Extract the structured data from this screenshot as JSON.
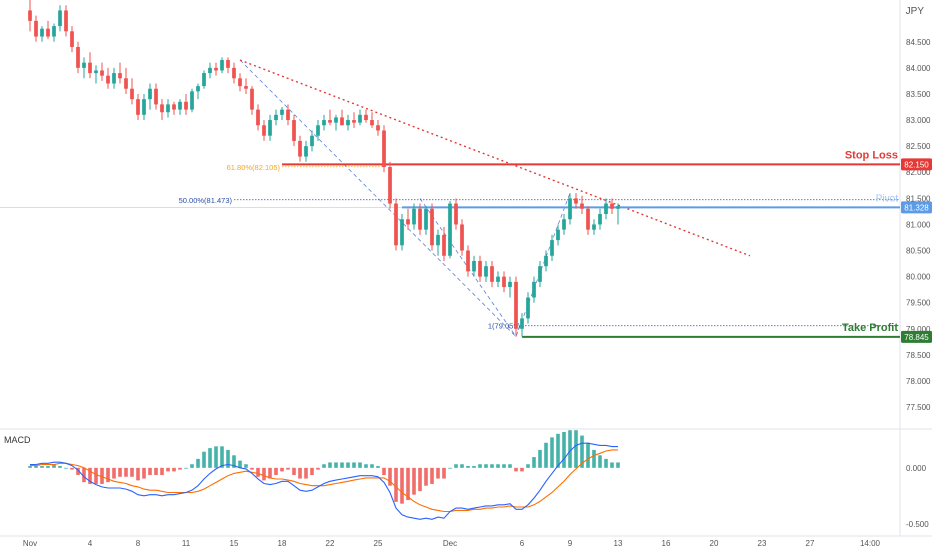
{
  "chart_data": [
    {
      "type": "candlestick",
      "symbol": "JPY",
      "y_ticks": [
        "84.500",
        "84.000",
        "83.500",
        "83.000",
        "82.500",
        "82.000",
        "81.500",
        "81.000",
        "80.500",
        "80.000",
        "79.500",
        "79.000",
        "78.500",
        "78.000",
        "77.500"
      ],
      "ylim": [
        77.1,
        85.3
      ],
      "x_tick_labels": [
        "Nov",
        "4",
        "8",
        "11",
        "15",
        "18",
        "22",
        "25",
        "Dec",
        "6",
        "9",
        "13",
        "16",
        "20",
        "23",
        "27",
        "14:00"
      ],
      "x_tick_index": [
        0,
        10,
        18,
        26,
        34,
        42,
        50,
        58,
        70,
        82,
        90,
        98,
        106,
        114,
        122,
        130,
        140
      ],
      "xlim": [
        -5,
        145
      ],
      "candles": [
        [
          0,
          85.1,
          85.3,
          84.7,
          84.9
        ],
        [
          1,
          84.9,
          85.0,
          84.5,
          84.6
        ],
        [
          2,
          84.6,
          84.8,
          84.5,
          84.75
        ],
        [
          3,
          84.75,
          84.9,
          84.55,
          84.6
        ],
        [
          4,
          84.6,
          84.85,
          84.5,
          84.8
        ],
        [
          5,
          84.8,
          85.2,
          84.7,
          85.1
        ],
        [
          6,
          85.1,
          85.2,
          84.6,
          84.7
        ],
        [
          7,
          84.7,
          84.8,
          84.3,
          84.4
        ],
        [
          8,
          84.4,
          84.5,
          83.9,
          84.0
        ],
        [
          9,
          84.0,
          84.2,
          83.8,
          84.1
        ],
        [
          10,
          84.1,
          84.3,
          83.8,
          83.9
        ],
        [
          11,
          83.9,
          84.05,
          83.7,
          83.95
        ],
        [
          12,
          83.95,
          84.1,
          83.75,
          83.85
        ],
        [
          13,
          83.85,
          84.0,
          83.6,
          83.7
        ],
        [
          14,
          83.7,
          84.0,
          83.6,
          83.9
        ],
        [
          15,
          83.9,
          84.1,
          83.7,
          83.8
        ],
        [
          16,
          83.8,
          84.0,
          83.5,
          83.6
        ],
        [
          17,
          83.6,
          83.8,
          83.3,
          83.4
        ],
        [
          18,
          83.4,
          83.5,
          83.0,
          83.1
        ],
        [
          19,
          83.1,
          83.5,
          83.0,
          83.4
        ],
        [
          20,
          83.4,
          83.7,
          83.2,
          83.6
        ],
        [
          21,
          83.6,
          83.7,
          83.2,
          83.3
        ],
        [
          22,
          83.3,
          83.4,
          83.0,
          83.15
        ],
        [
          23,
          83.15,
          83.4,
          83.05,
          83.3
        ],
        [
          24,
          83.3,
          83.35,
          83.1,
          83.2
        ],
        [
          25,
          83.2,
          83.4,
          83.1,
          83.35
        ],
        [
          26,
          83.35,
          83.5,
          83.1,
          83.2
        ],
        [
          27,
          83.2,
          83.6,
          83.15,
          83.55
        ],
        [
          28,
          83.55,
          83.7,
          83.4,
          83.65
        ],
        [
          29,
          83.65,
          83.95,
          83.6,
          83.9
        ],
        [
          30,
          83.9,
          84.1,
          83.8,
          84.0
        ],
        [
          31,
          84.0,
          84.1,
          83.85,
          83.95
        ],
        [
          32,
          83.95,
          84.2,
          83.9,
          84.15
        ],
        [
          33,
          84.15,
          84.2,
          83.9,
          84.0
        ],
        [
          34,
          84.0,
          84.1,
          83.7,
          83.8
        ],
        [
          35,
          83.8,
          83.9,
          83.55,
          83.65
        ],
        [
          36,
          83.65,
          83.8,
          83.5,
          83.6
        ],
        [
          37,
          83.6,
          83.65,
          83.1,
          83.2
        ],
        [
          38,
          83.2,
          83.3,
          82.8,
          82.9
        ],
        [
          39,
          82.9,
          83.0,
          82.6,
          82.7
        ],
        [
          40,
          82.7,
          83.1,
          82.6,
          83.0
        ],
        [
          41,
          83.0,
          83.2,
          82.9,
          83.1
        ],
        [
          42,
          83.1,
          83.25,
          83.0,
          83.2
        ],
        [
          43,
          83.2,
          83.3,
          82.9,
          83.0
        ],
        [
          44,
          83.0,
          83.1,
          82.5,
          82.6
        ],
        [
          45,
          82.6,
          82.7,
          82.2,
          82.3
        ],
        [
          46,
          82.3,
          82.6,
          82.2,
          82.5
        ],
        [
          47,
          82.5,
          82.8,
          82.4,
          82.7
        ],
        [
          48,
          82.7,
          83.0,
          82.6,
          82.9
        ],
        [
          49,
          82.9,
          83.1,
          82.8,
          83.0
        ],
        [
          50,
          83.0,
          83.2,
          82.9,
          82.95
        ],
        [
          51,
          82.95,
          83.1,
          82.8,
          83.05
        ],
        [
          52,
          83.05,
          83.2,
          82.9,
          82.9
        ],
        [
          53,
          82.9,
          83.1,
          82.8,
          83.0
        ],
        [
          54,
          83.0,
          83.15,
          82.85,
          82.95
        ],
        [
          55,
          82.95,
          83.2,
          82.9,
          83.1
        ],
        [
          56,
          83.1,
          83.2,
          82.95,
          83.0
        ],
        [
          57,
          83.0,
          83.15,
          82.85,
          82.9
        ],
        [
          58,
          82.9,
          83.0,
          82.7,
          82.8
        ],
        [
          59,
          82.8,
          82.9,
          82.0,
          82.1
        ],
        [
          60,
          82.1,
          82.2,
          81.3,
          81.4
        ],
        [
          61,
          81.4,
          81.5,
          80.5,
          80.6
        ],
        [
          62,
          80.6,
          81.2,
          80.5,
          81.1
        ],
        [
          63,
          81.1,
          81.3,
          80.9,
          81.0
        ],
        [
          64,
          81.0,
          81.4,
          80.9,
          81.3
        ],
        [
          65,
          81.3,
          81.4,
          80.8,
          80.9
        ],
        [
          66,
          80.9,
          81.35,
          80.8,
          81.3
        ],
        [
          67,
          81.3,
          81.4,
          80.5,
          80.6
        ],
        [
          68,
          80.6,
          80.9,
          80.4,
          80.8
        ],
        [
          69,
          80.8,
          80.95,
          80.3,
          80.4
        ],
        [
          70,
          80.4,
          81.45,
          80.35,
          81.4
        ],
        [
          71,
          81.4,
          81.5,
          80.9,
          81.0
        ],
        [
          72,
          81.0,
          81.1,
          80.4,
          80.5
        ],
        [
          73,
          80.5,
          80.6,
          80.0,
          80.1
        ],
        [
          74,
          80.1,
          80.4,
          80.0,
          80.3
        ],
        [
          75,
          80.3,
          80.4,
          79.9,
          80.0
        ],
        [
          76,
          80.0,
          80.3,
          79.9,
          80.2
        ],
        [
          77,
          80.2,
          80.3,
          79.8,
          79.9
        ],
        [
          78,
          79.9,
          80.1,
          79.8,
          80.0
        ],
        [
          79,
          80.0,
          80.1,
          79.7,
          79.8
        ],
        [
          80,
          79.8,
          80.0,
          79.6,
          79.9
        ],
        [
          81,
          79.9,
          80.0,
          78.85,
          79.0
        ],
        [
          82,
          79.0,
          79.3,
          78.85,
          79.2
        ],
        [
          83,
          79.2,
          79.7,
          79.1,
          79.6
        ],
        [
          84,
          79.6,
          80.0,
          79.5,
          79.9
        ],
        [
          85,
          79.9,
          80.3,
          79.8,
          80.2
        ],
        [
          86,
          80.2,
          80.5,
          80.1,
          80.4
        ],
        [
          87,
          80.4,
          80.8,
          80.3,
          80.7
        ],
        [
          88,
          80.7,
          81.0,
          80.6,
          80.9
        ],
        [
          89,
          80.9,
          81.2,
          80.8,
          81.1
        ],
        [
          90,
          81.1,
          81.6,
          81.0,
          81.5
        ],
        [
          91,
          81.5,
          81.6,
          81.3,
          81.4
        ],
        [
          92,
          81.4,
          81.55,
          81.2,
          81.3
        ],
        [
          93,
          81.3,
          81.35,
          80.8,
          80.9
        ],
        [
          94,
          80.9,
          81.1,
          80.8,
          81.0
        ],
        [
          95,
          81.0,
          81.3,
          80.9,
          81.2
        ],
        [
          96,
          81.2,
          81.5,
          81.1,
          81.4
        ],
        [
          97,
          81.4,
          81.5,
          81.2,
          81.3
        ],
        [
          98,
          81.3,
          81.4,
          81.0,
          81.35
        ]
      ],
      "lines": {
        "stop_loss": {
          "label": "Stop Loss",
          "value": 82.15,
          "price_label": "82.150",
          "color": "#e53935"
        },
        "take_profit": {
          "label": "Take Profit",
          "value": 78.845,
          "price_label": "78.845",
          "color": "#2e7d32"
        },
        "pivot": {
          "label": "Pivot",
          "value": 81.328,
          "price_label": "81.328",
          "color": "#5b9be8"
        }
      },
      "fib_labels": [
        {
          "text": "61.80%(82.105)",
          "value": 82.105,
          "color": "#f5a623"
        },
        {
          "text": "50.00%(81.473)",
          "value": 81.473,
          "color": "#2a4fa8"
        },
        {
          "text": "1(79.059)",
          "value": 79.059,
          "color": "#2a4fa8"
        }
      ],
      "trendline": {
        "x": [
          35,
          120
        ],
        "y": [
          84.15,
          80.4
        ],
        "color": "#e53935"
      },
      "colors": {
        "up": "#26a69a",
        "down": "#ef5350"
      }
    },
    {
      "type": "macd",
      "title": "MACD",
      "y_ticks": [
        "0.000",
        "-0.500"
      ],
      "tick_values": [
        0,
        -0.5
      ],
      "ylim": [
        -0.6,
        0.32
      ],
      "macd": [
        0.03,
        0.03,
        0.04,
        0.04,
        0.05,
        0.05,
        0.04,
        0.02,
        -0.02,
        -0.08,
        -0.12,
        -0.15,
        -0.17,
        -0.18,
        -0.18,
        -0.18,
        -0.19,
        -0.21,
        -0.24,
        -0.25,
        -0.24,
        -0.24,
        -0.25,
        -0.24,
        -0.24,
        -0.23,
        -0.22,
        -0.2,
        -0.16,
        -0.1,
        -0.05,
        -0.01,
        0.02,
        0.03,
        0.02,
        0.0,
        -0.01,
        -0.05,
        -0.1,
        -0.14,
        -0.15,
        -0.14,
        -0.12,
        -0.12,
        -0.16,
        -0.2,
        -0.21,
        -0.2,
        -0.17,
        -0.14,
        -0.12,
        -0.11,
        -0.1,
        -0.09,
        -0.08,
        -0.07,
        -0.07,
        -0.07,
        -0.08,
        -0.13,
        -0.22,
        -0.36,
        -0.42,
        -0.44,
        -0.45,
        -0.46,
        -0.45,
        -0.46,
        -0.44,
        -0.45,
        -0.39,
        -0.36,
        -0.36,
        -0.37,
        -0.36,
        -0.35,
        -0.34,
        -0.34,
        -0.33,
        -0.33,
        -0.32,
        -0.37,
        -0.37,
        -0.33,
        -0.27,
        -0.2,
        -0.12,
        -0.05,
        0.02,
        0.08,
        0.15,
        0.2,
        0.22,
        0.22,
        0.21,
        0.2,
        0.2,
        0.19,
        0.19
      ],
      "signal": [
        0.02,
        0.02,
        0.03,
        0.03,
        0.03,
        0.04,
        0.04,
        0.03,
        0.02,
        0.0,
        -0.03,
        -0.06,
        -0.08,
        -0.1,
        -0.12,
        -0.13,
        -0.14,
        -0.16,
        -0.17,
        -0.19,
        -0.2,
        -0.2,
        -0.21,
        -0.22,
        -0.22,
        -0.22,
        -0.22,
        -0.22,
        -0.21,
        -0.19,
        -0.16,
        -0.13,
        -0.1,
        -0.07,
        -0.05,
        -0.04,
        -0.03,
        -0.04,
        -0.05,
        -0.07,
        -0.09,
        -0.1,
        -0.1,
        -0.11,
        -0.12,
        -0.14,
        -0.15,
        -0.16,
        -0.16,
        -0.16,
        -0.15,
        -0.14,
        -0.13,
        -0.12,
        -0.11,
        -0.1,
        -0.09,
        -0.09,
        -0.09,
        -0.09,
        -0.12,
        -0.17,
        -0.22,
        -0.26,
        -0.3,
        -0.33,
        -0.35,
        -0.37,
        -0.38,
        -0.39,
        -0.39,
        -0.38,
        -0.38,
        -0.38,
        -0.37,
        -0.37,
        -0.36,
        -0.36,
        -0.35,
        -0.35,
        -0.34,
        -0.35,
        -0.35,
        -0.35,
        -0.33,
        -0.3,
        -0.26,
        -0.22,
        -0.17,
        -0.12,
        -0.06,
        -0.01,
        0.04,
        0.08,
        0.11,
        0.13,
        0.15,
        0.16,
        0.16
      ],
      "colors": {
        "macd": "#2962ff",
        "signal": "#ff6d00",
        "hist_up": "#26a69a",
        "hist_down": "#ef5350"
      }
    }
  ]
}
